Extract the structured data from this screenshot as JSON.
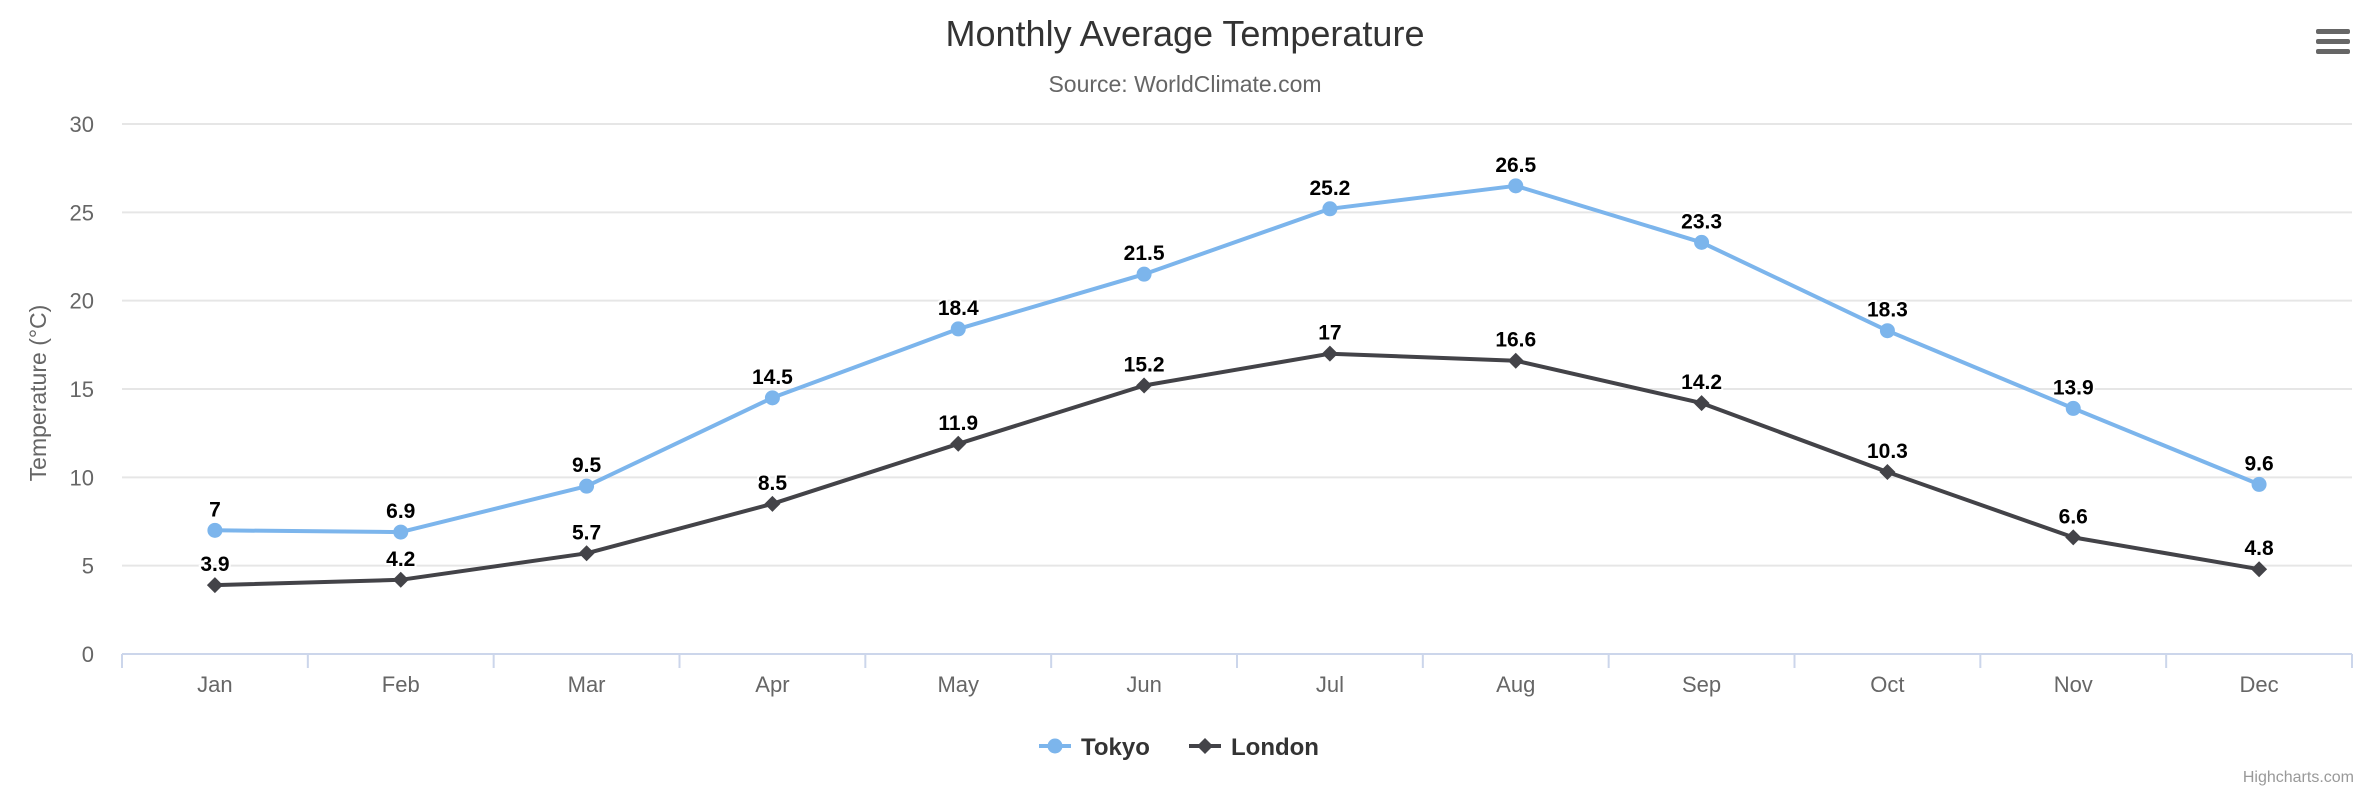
{
  "chart_data": {
    "type": "line",
    "title": "Monthly Average Temperature",
    "subtitle": "Source: WorldClimate.com",
    "ylabel": "Temperature (°C)",
    "xlabel": "",
    "categories": [
      "Jan",
      "Feb",
      "Mar",
      "Apr",
      "May",
      "Jun",
      "Jul",
      "Aug",
      "Sep",
      "Oct",
      "Nov",
      "Dec"
    ],
    "ylim": [
      0,
      30
    ],
    "yticks": [
      0,
      5,
      10,
      15,
      20,
      25,
      30
    ],
    "grid": true,
    "legend_position": "bottom-center",
    "series": [
      {
        "name": "Tokyo",
        "color": "#7cb5ec",
        "marker": "circle",
        "values": [
          7.0,
          6.9,
          9.5,
          14.5,
          18.4,
          21.5,
          25.2,
          26.5,
          23.3,
          18.3,
          13.9,
          9.6
        ]
      },
      {
        "name": "London",
        "color": "#434348",
        "marker": "diamond",
        "values": [
          3.9,
          4.2,
          5.7,
          8.5,
          11.9,
          15.2,
          17.0,
          16.6,
          14.2,
          10.3,
          6.6,
          4.8
        ]
      }
    ],
    "data_labels": true
  },
  "credits": "Highcharts.com",
  "menu_icon": "hamburger-menu-icon"
}
